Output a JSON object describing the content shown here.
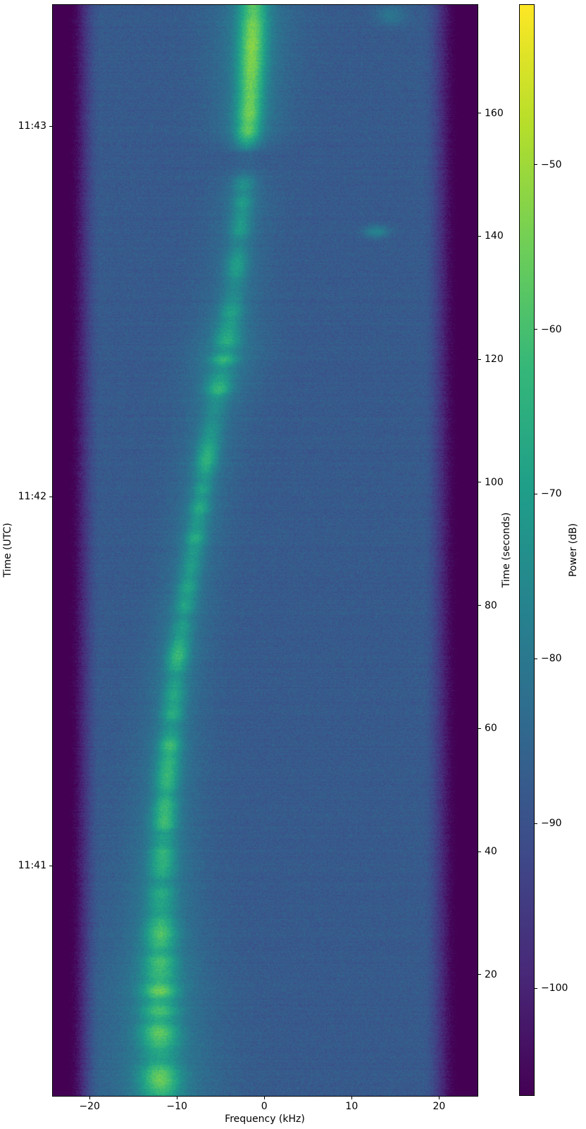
{
  "chart_data": {
    "type": "heatmap",
    "title": "",
    "description": "Spectrogram (waterfall) of a Doppler-shifted satellite signal, viridis colormap",
    "x_axis": {
      "label": "Frequency (kHz)",
      "xlim": [
        -24.2,
        24.4
      ],
      "ticks": [
        {
          "v": -20,
          "label": "−20"
        },
        {
          "v": -10,
          "label": "−10"
        },
        {
          "v": 0,
          "label": "0"
        },
        {
          "v": 10,
          "label": "10"
        },
        {
          "v": 20,
          "label": "20"
        }
      ]
    },
    "left_axis": {
      "label": "Time (UTC)",
      "ticks": [
        {
          "t": 37.7,
          "label": "11:41"
        },
        {
          "t": 97.7,
          "label": "11:42"
        },
        {
          "t": 157.9,
          "label": "11:43"
        }
      ]
    },
    "right_axis": {
      "label": "Time (seconds)",
      "tlim": [
        0.3,
        177.6
      ],
      "ticks": [
        {
          "v": 20,
          "label": "20"
        },
        {
          "v": 40,
          "label": "40"
        },
        {
          "v": 60,
          "label": "60"
        },
        {
          "v": 80,
          "label": "80"
        },
        {
          "v": 100,
          "label": "100"
        },
        {
          "v": 120,
          "label": "120"
        },
        {
          "v": 140,
          "label": "140"
        },
        {
          "v": 160,
          "label": "160"
        }
      ]
    },
    "colorbar": {
      "label": "Power (dB)",
      "vmin": -106.5,
      "vmax": -40.3,
      "ticks": [
        {
          "v": -50,
          "label": "−50"
        },
        {
          "v": -60,
          "label": "−60"
        },
        {
          "v": -70,
          "label": "−70"
        },
        {
          "v": -80,
          "label": "−80"
        },
        {
          "v": -90,
          "label": "−90"
        },
        {
          "v": -100,
          "label": "−100"
        }
      ],
      "cmap": "viridis",
      "viridis_stops": [
        "#440154",
        "#482878",
        "#3e4a89",
        "#31688e",
        "#26828e",
        "#1f9e89",
        "#35b779",
        "#6ece58",
        "#b5de2b",
        "#fde725"
      ]
    },
    "spectrogram": {
      "noise_floor_db": -87.7,
      "band_edge_db": -110,
      "edge_rolloff_khz": 4.0,
      "signal_peak_gain_db": 31,
      "doppler_track_t_f": [
        [
          0.3,
          -11.9
        ],
        [
          12,
          -12.05
        ],
        [
          24,
          -11.95
        ],
        [
          35,
          -11.8
        ],
        [
          47,
          -11.4
        ],
        [
          58,
          -10.8
        ],
        [
          70,
          -10.1
        ],
        [
          81,
          -9.0
        ],
        [
          92,
          -7.8
        ],
        [
          100,
          -7.0
        ],
        [
          108,
          -6.2
        ],
        [
          115,
          -5.3
        ],
        [
          122,
          -4.4
        ],
        [
          127,
          -3.9
        ],
        [
          133,
          -3.3
        ],
        [
          138,
          -3.0
        ],
        [
          144,
          -2.6
        ],
        [
          150,
          -2.3
        ],
        [
          156,
          -1.95
        ],
        [
          161,
          -1.7
        ],
        [
          170,
          -1.45
        ],
        [
          177.6,
          -1.3
        ]
      ],
      "amplitude_envelope_t_a": [
        [
          0.3,
          0.95
        ],
        [
          6,
          1.0
        ],
        [
          12,
          0.92
        ],
        [
          18,
          1.0
        ],
        [
          24,
          0.95
        ],
        [
          30,
          0.85
        ],
        [
          34,
          0.9
        ],
        [
          38,
          0.8
        ],
        [
          42,
          0.85
        ],
        [
          46,
          0.8
        ],
        [
          50,
          0.75
        ],
        [
          55,
          0.8
        ],
        [
          60,
          0.75
        ],
        [
          65,
          0.7
        ],
        [
          70,
          0.75
        ],
        [
          75,
          0.7
        ],
        [
          80,
          0.72
        ],
        [
          85,
          0.65
        ],
        [
          90,
          0.7
        ],
        [
          95,
          0.72
        ],
        [
          100,
          0.65
        ],
        [
          104,
          0.7
        ],
        [
          108,
          0.6
        ],
        [
          112,
          0.62
        ],
        [
          116,
          0.8
        ],
        [
          120,
          0.92
        ],
        [
          124,
          0.85
        ],
        [
          128,
          0.6
        ],
        [
          132,
          0.55
        ],
        [
          136,
          0.6
        ],
        [
          140,
          0.55
        ],
        [
          144,
          0.6
        ],
        [
          148,
          0.5
        ],
        [
          150,
          0.3
        ],
        [
          151.5,
          0.08
        ],
        [
          153.5,
          0.08
        ],
        [
          155,
          0.5
        ],
        [
          157,
          0.8
        ],
        [
          160,
          0.9
        ],
        [
          164,
          0.85
        ],
        [
          168,
          0.9
        ],
        [
          172,
          0.95
        ],
        [
          175,
          0.9
        ],
        [
          177.6,
          0.85
        ]
      ],
      "sigma_khz_t_s": [
        [
          0.3,
          1.6
        ],
        [
          15,
          1.5
        ],
        [
          30,
          1.2
        ],
        [
          45,
          1.0
        ],
        [
          60,
          0.95
        ],
        [
          75,
          0.9
        ],
        [
          90,
          0.85
        ],
        [
          100,
          0.85
        ],
        [
          110,
          0.95
        ],
        [
          120,
          1.1
        ],
        [
          130,
          0.95
        ],
        [
          140,
          0.85
        ],
        [
          150,
          0.9
        ],
        [
          155,
          1.0
        ],
        [
          165,
          1.1
        ],
        [
          177.6,
          1.15
        ]
      ],
      "blips": [
        {
          "f_khz": 14.5,
          "t_s": 176.0,
          "sigma_f": 1.2,
          "sigma_t": 1.2,
          "gain_db": 7
        },
        {
          "f_khz": 12.8,
          "t_s": 140.8,
          "sigma_f": 1.0,
          "sigma_t": 0.7,
          "gain_db": 11
        }
      ]
    }
  }
}
